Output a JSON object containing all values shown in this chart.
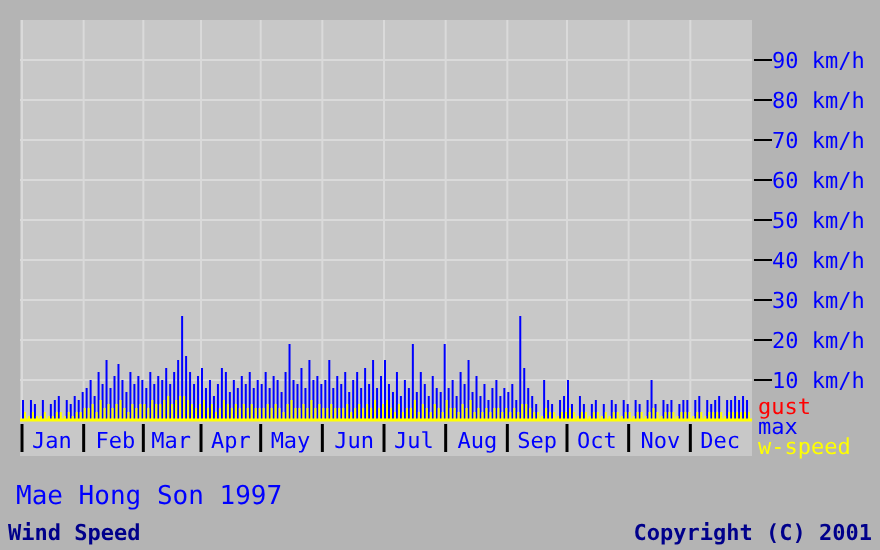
{
  "chart_data": {
    "type": "bar",
    "title": "Mae Hong Son 1997",
    "subtitle": "Wind Speed",
    "annotations": [
      "Copyright (C) 2001"
    ],
    "categories": [
      null,
      null,
      null,
      null,
      null,
      null,
      null,
      "Jan",
      null,
      null,
      null,
      null,
      null,
      null,
      null,
      null,
      null,
      null,
      null,
      null,
      null,
      null,
      null,
      "Feb",
      null,
      null,
      null,
      null,
      null,
      null,
      null,
      null,
      null,
      null,
      null,
      null,
      null,
      "Mar",
      null,
      null,
      null,
      null,
      null,
      null,
      null,
      null,
      null,
      null,
      null,
      null,
      null,
      null,
      "Apr",
      null,
      null,
      null,
      null,
      null,
      null,
      null,
      null,
      null,
      null,
      null,
      null,
      null,
      null,
      "May",
      null,
      null,
      null,
      null,
      null,
      null,
      null,
      null,
      null,
      null,
      null,
      null,
      null,
      null,
      null,
      "Jun",
      null,
      null,
      null,
      null,
      null,
      null,
      null,
      null,
      null,
      null,
      null,
      null,
      null,
      null,
      "Jul",
      null,
      null,
      null,
      null,
      null,
      null,
      null,
      null,
      null,
      null,
      null,
      null,
      null,
      null,
      null,
      "Aug",
      null,
      null,
      null,
      null,
      null,
      null,
      null,
      null,
      null,
      null,
      null,
      null,
      null,
      null,
      "Sep",
      null,
      null,
      null,
      null,
      null,
      null,
      null,
      null,
      null,
      null,
      null,
      null,
      null,
      null,
      "Oct",
      null,
      null,
      null,
      null,
      null,
      null,
      null,
      null,
      null,
      null,
      null,
      null,
      null,
      null,
      null,
      "Nov",
      null,
      null,
      null,
      null,
      null,
      null,
      null,
      null,
      null,
      null,
      null,
      null,
      null,
      null,
      "Dec",
      null,
      null,
      null,
      null,
      null,
      null,
      null
    ],
    "ylim": [
      0,
      100
    ],
    "yticks": [
      {
        "value": 10,
        "label": "10 km/h"
      },
      {
        "value": 20,
        "label": "20 km/h"
      },
      {
        "value": 30,
        "label": "30 km/h"
      },
      {
        "value": 40,
        "label": "40 km/h"
      },
      {
        "value": 50,
        "label": "50 km/h"
      },
      {
        "value": 60,
        "label": "60 km/h"
      },
      {
        "value": 70,
        "label": "70 km/h"
      },
      {
        "value": 80,
        "label": "80 km/h"
      },
      {
        "value": 90,
        "label": "90 km/h"
      }
    ],
    "grid": true,
    "legend": "bottom right",
    "stacked": false,
    "series": [
      {
        "name": "gust",
        "color": "#ff0000",
        "values": [
          null,
          null,
          null,
          null,
          null,
          null,
          null,
          null,
          null,
          null,
          null,
          null,
          null,
          null,
          null,
          null,
          null,
          null,
          null,
          null,
          null,
          null,
          null,
          null,
          null,
          null,
          null,
          null,
          null,
          null,
          null,
          null,
          null,
          null,
          null,
          null,
          null,
          null,
          null,
          null,
          null,
          null,
          null,
          null,
          null,
          null,
          null,
          null,
          null,
          null,
          null,
          null,
          null,
          null,
          null,
          null,
          null,
          null,
          null,
          null,
          null,
          null,
          null,
          null,
          null,
          null,
          null,
          null,
          null,
          null,
          null,
          null,
          null,
          null,
          null,
          null,
          null,
          null,
          null,
          null,
          null,
          null,
          null,
          null,
          null,
          null,
          null,
          null,
          null,
          null,
          null,
          null,
          null,
          null,
          null,
          null,
          null,
          null,
          null,
          null,
          null,
          null,
          null,
          null,
          null,
          null,
          null,
          null,
          null,
          null,
          null,
          null,
          null,
          null,
          null,
          null,
          null,
          null,
          null,
          null,
          null,
          null,
          null,
          null,
          null,
          null,
          null,
          null,
          null,
          null,
          null,
          null,
          null,
          null,
          null,
          null,
          null,
          null,
          null,
          null,
          null,
          null,
          null,
          null,
          null,
          null,
          null,
          null,
          null,
          null,
          null,
          null,
          null,
          null,
          null,
          null,
          null,
          null,
          null,
          null,
          null,
          null,
          null,
          null,
          null,
          null,
          null,
          null,
          null,
          null,
          null,
          null,
          null,
          null,
          null,
          null,
          null,
          null,
          null,
          null,
          null,
          null,
          null
        ]
      },
      {
        "name": "max",
        "color": "#0000ff",
        "values": [
          5,
          0,
          5,
          4,
          0,
          5,
          0,
          4,
          5,
          6,
          0,
          5,
          4,
          6,
          5,
          7,
          8,
          10,
          6,
          12,
          9,
          15,
          8,
          11,
          14,
          10,
          7,
          12,
          9,
          11,
          10,
          8,
          12,
          9,
          11,
          10,
          13,
          9,
          12,
          15,
          26,
          16,
          12,
          9,
          11,
          13,
          8,
          10,
          6,
          9,
          13,
          12,
          7,
          10,
          8,
          11,
          9,
          12,
          8,
          10,
          9,
          12,
          8,
          11,
          10,
          7,
          12,
          19,
          10,
          9,
          13,
          8,
          15,
          10,
          11,
          9,
          10,
          15,
          8,
          11,
          9,
          12,
          7,
          10,
          12,
          8,
          13,
          9,
          15,
          8,
          11,
          15,
          9,
          7,
          12,
          6,
          10,
          8,
          19,
          7,
          12,
          9,
          6,
          11,
          8,
          7,
          19,
          8,
          10,
          6,
          12,
          9,
          15,
          7,
          11,
          6,
          9,
          5,
          8,
          10,
          6,
          8,
          7,
          9,
          5,
          26,
          13,
          8,
          6,
          4,
          0,
          10,
          5,
          4,
          0,
          5,
          6,
          10,
          4,
          0,
          6,
          4,
          0,
          4,
          5,
          0,
          4,
          0,
          5,
          4,
          0,
          5,
          4,
          0,
          5,
          4,
          0,
          5,
          10,
          4,
          0,
          5,
          4,
          5,
          0,
          4,
          5,
          5,
          0,
          5,
          6,
          0,
          5,
          4,
          5,
          6,
          0,
          5,
          5,
          6,
          5,
          6,
          5
        ]
      },
      {
        "name": "w-speed",
        "color": "#ffff00",
        "values": [
          2,
          1,
          2,
          1,
          1,
          2,
          1,
          1,
          2,
          2,
          1,
          2,
          1,
          2,
          2,
          3,
          3,
          4,
          2,
          5,
          3,
          4,
          3,
          4,
          5,
          3,
          2,
          4,
          3,
          4,
          4,
          3,
          5,
          4,
          4,
          5,
          6,
          4,
          5,
          6,
          6,
          5,
          4,
          3,
          4,
          5,
          3,
          4,
          2,
          3,
          5,
          4,
          3,
          4,
          3,
          4,
          3,
          4,
          3,
          3,
          3,
          4,
          3,
          4,
          3,
          2,
          4,
          5,
          3,
          3,
          4,
          3,
          5,
          3,
          4,
          3,
          3,
          4,
          3,
          3,
          3,
          4,
          2,
          3,
          4,
          3,
          4,
          3,
          5,
          3,
          4,
          5,
          3,
          2,
          4,
          2,
          3,
          3,
          5,
          2,
          4,
          3,
          2,
          4,
          3,
          2,
          5,
          3,
          3,
          2,
          4,
          3,
          5,
          2,
          3,
          2,
          3,
          2,
          3,
          3,
          2,
          3,
          2,
          3,
          2,
          4,
          4,
          3,
          2,
          2,
          1,
          3,
          2,
          2,
          1,
          2,
          2,
          3,
          2,
          1,
          2,
          2,
          1,
          2,
          2,
          1,
          2,
          1,
          2,
          2,
          1,
          2,
          2,
          1,
          2,
          2,
          1,
          2,
          3,
          2,
          1,
          2,
          2,
          2,
          1,
          2,
          2,
          2,
          1,
          2,
          2,
          1,
          2,
          2,
          2,
          2,
          1,
          2,
          2,
          2,
          2,
          2,
          2
        ]
      }
    ]
  }
}
